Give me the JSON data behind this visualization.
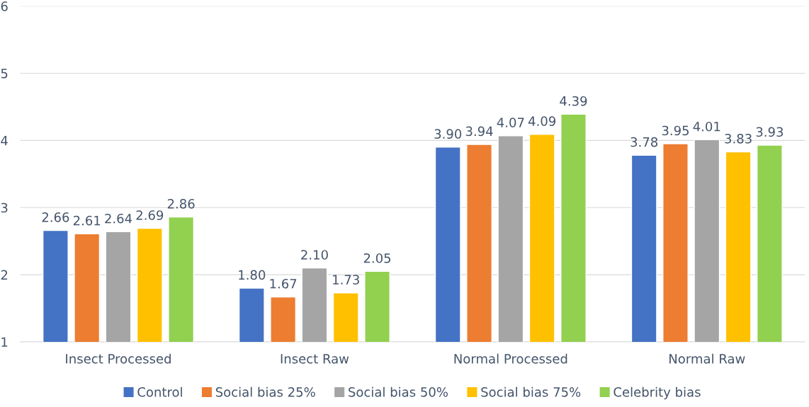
{
  "chart_data": {
    "type": "bar",
    "categories": [
      "Insect Processed",
      "Insect Raw",
      "Normal Processed",
      "Normal Raw"
    ],
    "series": [
      {
        "name": "Control",
        "color": "#4472c4",
        "values": [
          2.66,
          1.8,
          3.9,
          3.78
        ],
        "value_labels": [
          "2.66",
          "1.80",
          "3.90",
          "3.78"
        ]
      },
      {
        "name": "Social bias 25%",
        "color": "#ed7d31",
        "values": [
          2.61,
          1.67,
          3.94,
          3.95
        ],
        "value_labels": [
          "2.61",
          "1.67",
          "3.94",
          "3.95"
        ]
      },
      {
        "name": "Social bias 50%",
        "color": "#a5a5a5",
        "values": [
          2.64,
          2.1,
          4.07,
          4.01
        ],
        "value_labels": [
          "2.64",
          "2.10",
          "4.07",
          "4.01"
        ]
      },
      {
        "name": "Social bias 75%",
        "color": "#ffc000",
        "values": [
          2.69,
          1.73,
          4.09,
          3.83
        ],
        "value_labels": [
          "2.69",
          "1.73",
          "4.09",
          "3.83"
        ]
      },
      {
        "name": "Celebrity bias",
        "color": "#92d050",
        "values": [
          2.86,
          2.05,
          4.39,
          3.93
        ],
        "value_labels": [
          "2.86",
          "2.05",
          "4.39",
          "3.93"
        ]
      }
    ],
    "ylim": [
      1,
      6
    ],
    "yticks": [
      1,
      2,
      3,
      4,
      5,
      6
    ],
    "grid": "y",
    "legend": "bottom"
  }
}
